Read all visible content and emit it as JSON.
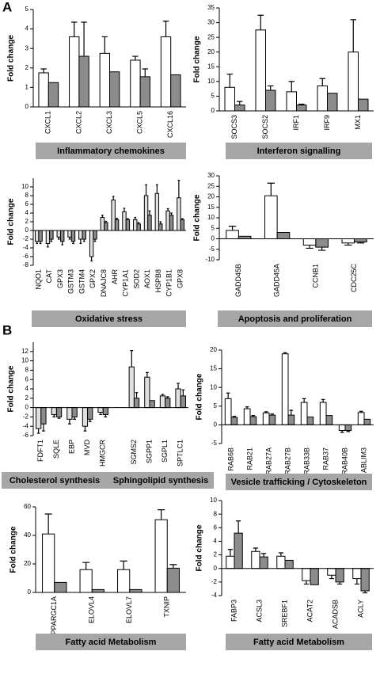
{
  "section_labels": [
    "A",
    "B"
  ],
  "chart_data": [
    {
      "type": "bar",
      "y_label": "Fold change",
      "footer": [
        "Inflammatory chemokines"
      ],
      "categories": [
        "CXCL1",
        "CXCL2",
        "CXCL3",
        "CXCL5",
        "CXCL16"
      ],
      "series": [
        {
          "color": "#ffffff",
          "values": [
            1.75,
            3.6,
            2.75,
            2.4,
            3.6
          ],
          "errors": [
            0.2,
            0.75,
            0.85,
            0.2,
            0.8
          ]
        },
        {
          "color": "#8c8c8c",
          "values": [
            1.25,
            2.6,
            1.8,
            1.55,
            1.65
          ],
          "errors": [
            0,
            1.75,
            0,
            0.4,
            0
          ]
        }
      ],
      "ylim": [
        0,
        5
      ],
      "yticks": [
        0,
        1,
        2,
        3,
        4,
        5
      ]
    },
    {
      "type": "bar",
      "y_label": "Fold change",
      "footer": [
        "Interferon signalling"
      ],
      "categories": [
        "SOCS3",
        "SOCS2",
        "IRF1",
        "IRF9",
        "MX1"
      ],
      "series": [
        {
          "color": "#ffffff",
          "values": [
            8,
            27.5,
            6.5,
            8.5,
            20
          ],
          "errors": [
            4.5,
            5,
            3.5,
            2.5,
            11
          ]
        },
        {
          "color": "#8c8c8c",
          "values": [
            2,
            7,
            2,
            6,
            4
          ],
          "errors": [
            1.2,
            1.5,
            0.3,
            0,
            0
          ]
        }
      ],
      "ylim": [
        0,
        35
      ],
      "yticks": [
        0,
        5,
        10,
        15,
        20,
        25,
        30,
        35
      ]
    },
    {
      "type": "bar",
      "y_label": "Fold change",
      "footer": [
        "Oxidative stress"
      ],
      "categories": [
        "NQO1",
        "CAT",
        "GPX3",
        "GSTM3",
        "GSTM4",
        "GPX2",
        "DNAJC8",
        "AHR",
        "CYP1A1",
        "SOD2",
        "AOX1",
        "HSPB8",
        "CYP1B1",
        "GPX8"
      ],
      "series": [
        {
          "color": "#e0e0e0",
          "values": [
            -2.5,
            -3,
            -1.5,
            -1.5,
            -2,
            -6,
            3,
            7,
            4.3,
            2.5,
            8,
            8.5,
            4.5,
            7.5
          ],
          "errors": [
            0.5,
            0.8,
            0.5,
            0.5,
            1,
            1,
            0.5,
            0.8,
            0.8,
            0.5,
            2.5,
            2,
            0.5,
            4
          ]
        },
        {
          "color": "#8c8c8c",
          "values": [
            -2.5,
            -2,
            -2.5,
            -2.5,
            -2,
            -2,
            1.8,
            2.5,
            2.5,
            1.5,
            3.5,
            1.5,
            3.5,
            2.5
          ],
          "errors": [
            0.5,
            0.5,
            0.8,
            0.5,
            0.5,
            0.5,
            0.3,
            0.3,
            0.2,
            0.3,
            1,
            0.5,
            0.5,
            0.2
          ]
        }
      ],
      "ylim": [
        -8,
        12
      ],
      "yticks": [
        -8,
        -6,
        -4,
        -2,
        0,
        2,
        4,
        6,
        8,
        10
      ]
    },
    {
      "type": "bar",
      "y_label": "Fold change",
      "footer": [
        "Apoptosis and proliferation"
      ],
      "categories": [
        "GADD45B",
        "GADD45A",
        "CCNB1",
        "CDC25C"
      ],
      "series": [
        {
          "color": "#ffffff",
          "values": [
            4,
            20.5,
            -3,
            -2
          ],
          "errors": [
            2,
            6,
            1.5,
            1
          ]
        },
        {
          "color": "#8c8c8c",
          "values": [
            1.2,
            3,
            -4,
            -1.5
          ],
          "errors": [
            0,
            0,
            1.5,
            0.5
          ]
        }
      ],
      "ylim": [
        -10,
        30
      ],
      "yticks": [
        -10,
        -5,
        0,
        5,
        10,
        15,
        20,
        25,
        30
      ]
    },
    {
      "type": "bar",
      "y_label": "Fold change",
      "footer": [
        "Cholesterol synthesis",
        "Sphingolipid synthesis"
      ],
      "categories": [
        "FDFT1",
        "SQLE",
        "EBP",
        "MVD",
        "HMGCR",
        null,
        "SGMS2",
        "SGPP1",
        "SGPL1",
        "SPTLC1"
      ],
      "series": [
        {
          "color": "#e0e0e0",
          "values": [
            -4.5,
            -1.5,
            -2.5,
            -4,
            -1,
            null,
            8.7,
            6.5,
            2.5,
            4
          ],
          "errors": [
            1,
            0.5,
            1,
            1,
            0.5,
            null,
            3.5,
            1,
            0.3,
            1.2
          ]
        },
        {
          "color": "#8c8c8c",
          "values": [
            -3.5,
            -2,
            -2,
            -2.5,
            -1.5,
            null,
            2,
            1.5,
            2,
            2.5
          ],
          "errors": [
            1.5,
            0.3,
            0.5,
            0.5,
            0.5,
            null,
            1.2,
            0,
            0.3,
            1.3
          ]
        }
      ],
      "ylim": [
        -6,
        14
      ],
      "yticks": [
        -6,
        -4,
        -2,
        0,
        2,
        4,
        6,
        8,
        10,
        12
      ]
    },
    {
      "type": "bar",
      "y_label": "Fold change",
      "footer": [
        "Vesicle trafficking / Cytoskeleton"
      ],
      "categories": [
        "RAB6B",
        "RAB21",
        "RAB27A",
        "RAB27B",
        "RAB33B",
        "RAB37",
        "RAB40B",
        "ABLIM3"
      ],
      "series": [
        {
          "color": "#ffffff",
          "values": [
            7,
            4.3,
            3.2,
            19,
            6,
            6,
            -1.5,
            3.3
          ],
          "errors": [
            1.5,
            0.5,
            0.3,
            0.3,
            1,
            0.8,
            0.5,
            0.3
          ]
        },
        {
          "color": "#8c8c8c",
          "values": [
            2,
            2.2,
            2.6,
            2.6,
            2.1,
            2.5,
            -1.5,
            1.5
          ],
          "errors": [
            0.3,
            0.3,
            0.3,
            1.3,
            0,
            0,
            0.3,
            0
          ]
        }
      ],
      "ylim": [
        -5,
        20
      ],
      "yticks": [
        -5,
        0,
        5,
        10,
        15,
        20
      ]
    },
    {
      "type": "bar",
      "y_label": "Fold change",
      "footer": [
        "Fatty acid Metabolism"
      ],
      "categories": [
        "PPARGC1A",
        "ELOVL4",
        "ELOVL7",
        "TXNIP"
      ],
      "series": [
        {
          "color": "#ffffff",
          "values": [
            41,
            16,
            16,
            51
          ],
          "errors": [
            14,
            5,
            6,
            7
          ]
        },
        {
          "color": "#8c8c8c",
          "values": [
            7,
            2,
            2,
            17
          ],
          "errors": [
            0,
            0,
            0,
            2.5
          ]
        }
      ],
      "ylim": [
        0,
        60
      ],
      "yticks": [
        0,
        20,
        40,
        60
      ]
    },
    {
      "type": "bar",
      "y_label": "Fold change",
      "footer": [
        "Fatty acid Metabolism"
      ],
      "categories": [
        "FABP3",
        "ACSL3",
        "SREBF1",
        "ACAT2",
        "ACADSB",
        "ACLY"
      ],
      "series": [
        {
          "color": "#ffffff",
          "values": [
            1.8,
            2.5,
            1.8,
            -1.8,
            -1,
            -1.5
          ],
          "errors": [
            1,
            0.5,
            0.5,
            0.5,
            0.5,
            0.8
          ]
        },
        {
          "color": "#8c8c8c",
          "values": [
            5.2,
            1.7,
            1.2,
            -2.4,
            -2,
            -3.3
          ],
          "errors": [
            1.8,
            0.5,
            0,
            0,
            0.3,
            0.3
          ]
        }
      ],
      "ylim": [
        -4,
        10
      ],
      "yticks": [
        -4,
        -2,
        0,
        2,
        4,
        6,
        8,
        10
      ]
    }
  ]
}
